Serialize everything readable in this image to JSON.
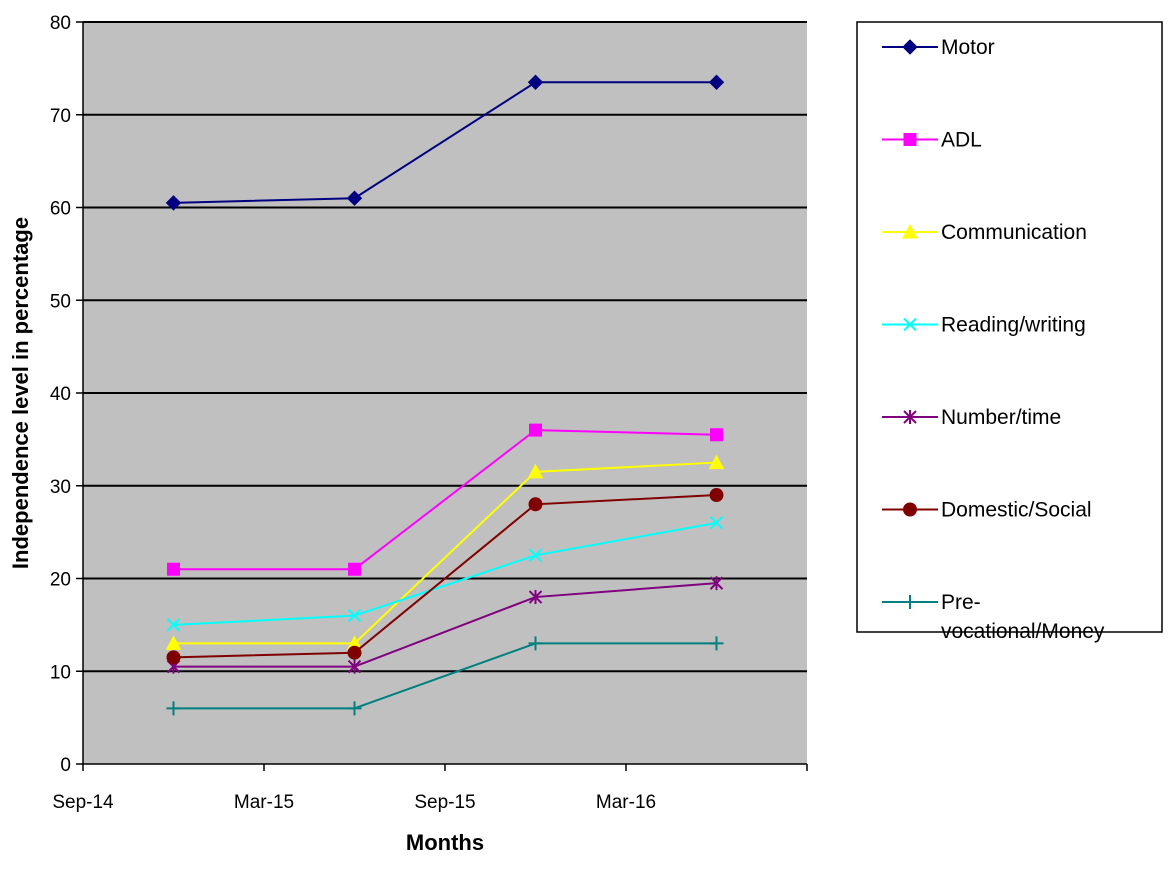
{
  "chart_data": {
    "type": "line",
    "xlabel": "Months",
    "ylabel": "Independence level in percentage",
    "categories": [
      "Sep-14",
      "Mar-15",
      "Sep-15",
      "Mar-16"
    ],
    "ylim": [
      0,
      80
    ],
    "yticks": [
      0,
      10,
      20,
      30,
      40,
      50,
      60,
      70,
      80
    ],
    "grid": true,
    "plot_background": "#c0c0c0",
    "legend_position": "right",
    "series": [
      {
        "name": "Motor",
        "legend_lines": [
          "Motor"
        ],
        "color": "#000080",
        "marker": "diamond",
        "values": [
          60.5,
          61,
          73.5,
          73.5
        ]
      },
      {
        "name": "ADL",
        "legend_lines": [
          "ADL"
        ],
        "color": "#ff00ff",
        "marker": "square",
        "values": [
          21,
          21,
          36,
          35.5
        ]
      },
      {
        "name": "Communication",
        "legend_lines": [
          "Communication"
        ],
        "color": "#ffff00",
        "marker": "triangle",
        "values": [
          13,
          13,
          31.5,
          32.5
        ]
      },
      {
        "name": "Reading/writing",
        "legend_lines": [
          "Reading/writing"
        ],
        "color": "#00ffff",
        "marker": "x",
        "values": [
          15,
          16,
          22.5,
          26
        ]
      },
      {
        "name": "Number/time",
        "legend_lines": [
          "Number/time"
        ],
        "color": "#800080",
        "marker": "asterisk",
        "values": [
          10.5,
          10.5,
          18,
          19.5
        ]
      },
      {
        "name": "Domestic/Social",
        "legend_lines": [
          "Domestic/Social"
        ],
        "color": "#800000",
        "marker": "circle",
        "values": [
          11.5,
          12,
          28,
          29
        ]
      },
      {
        "name": "Pre-vocational/Money",
        "legend_lines": [
          "Pre-",
          "vocational/Money"
        ],
        "color": "#008080",
        "marker": "plus",
        "values": [
          6,
          6,
          13,
          13
        ]
      }
    ]
  }
}
